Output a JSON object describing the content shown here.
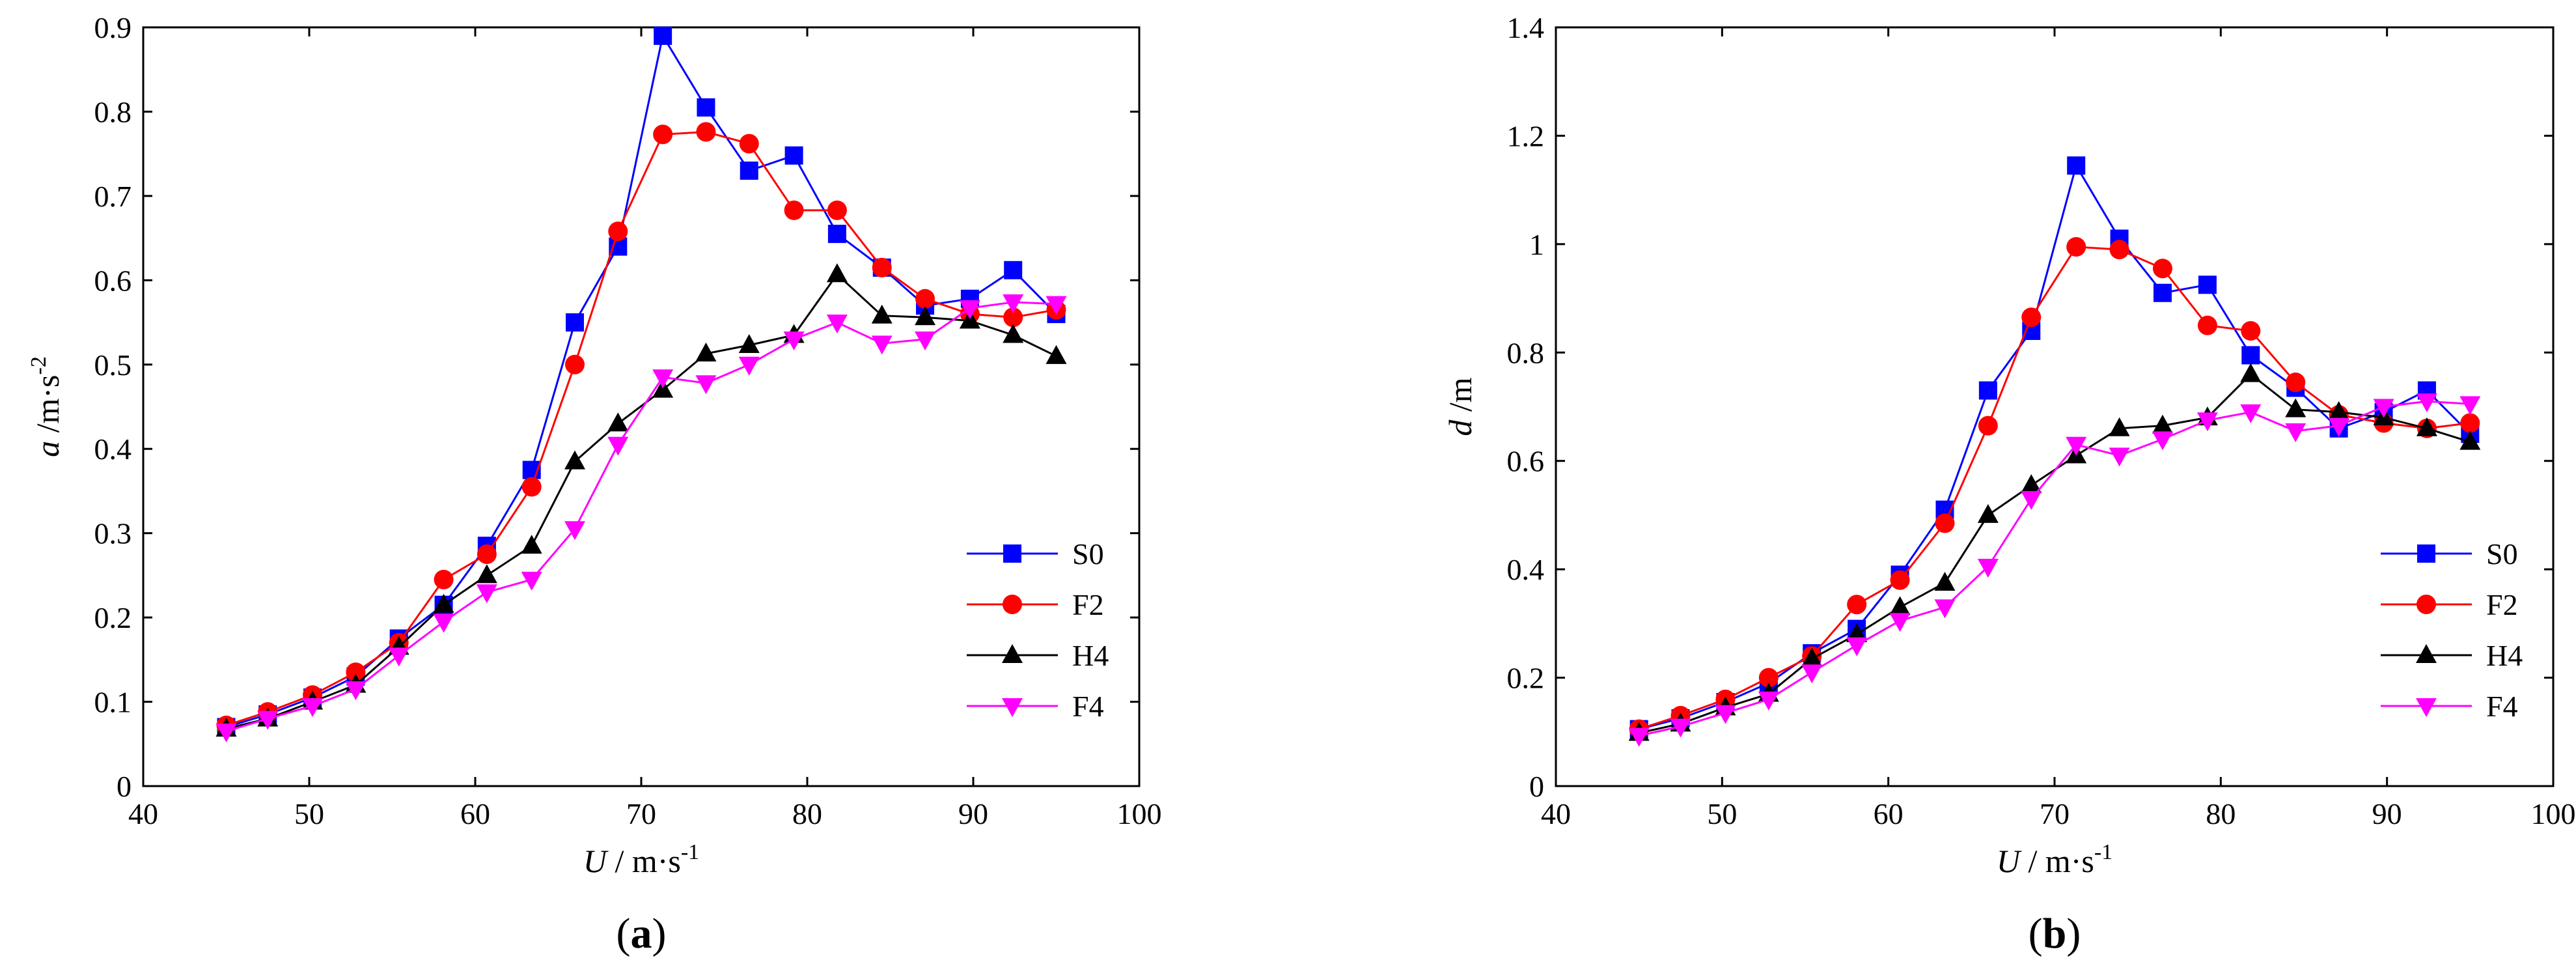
{
  "chart_data": [
    {
      "type": "line",
      "panel_label": "(a)",
      "panel_letter": "a",
      "xlabel": {
        "var": "U",
        "unit": " / m·s",
        "exp": "-1"
      },
      "ylabel": {
        "var": "a",
        "unit": " /m·s",
        "exp": "-2"
      },
      "xlim": [
        40,
        100
      ],
      "ylim": [
        0,
        0.9
      ],
      "xticks": [
        "40",
        "50",
        "60",
        "70",
        "80",
        "90",
        "100"
      ],
      "yticks": [
        "0",
        "0.1",
        "0.2",
        "0.3",
        "0.4",
        "0.5",
        "0.6",
        "0.7",
        "0.8",
        "0.9"
      ],
      "grid": false,
      "legend_position": "lower-right",
      "x": [
        45,
        47.5,
        50.2,
        52.8,
        55.4,
        58.1,
        60.7,
        63.4,
        66,
        68.6,
        71.3,
        73.9,
        76.5,
        79.2,
        81.8,
        84.5,
        87.1,
        89.8,
        92.4,
        95
      ],
      "series": [
        {
          "name": "S0",
          "color": "#0000ff",
          "marker": "square",
          "values": [
            0.07,
            0.085,
            0.105,
            0.13,
            0.175,
            0.215,
            0.285,
            0.375,
            0.55,
            0.64,
            0.89,
            0.805,
            0.73,
            0.748,
            0.655,
            0.615,
            0.57,
            0.578,
            0.612,
            0.56
          ]
        },
        {
          "name": "F2",
          "color": "#ff0000",
          "marker": "circle",
          "values": [
            0.072,
            0.088,
            0.108,
            0.135,
            0.17,
            0.245,
            0.275,
            0.355,
            0.5,
            0.658,
            0.773,
            0.776,
            0.762,
            0.683,
            0.683,
            0.615,
            0.578,
            0.56,
            0.556,
            0.565
          ]
        },
        {
          "name": "H4",
          "color": "#000000",
          "marker": "triangle-up",
          "values": [
            0.068,
            0.08,
            0.1,
            0.12,
            0.165,
            0.215,
            0.25,
            0.285,
            0.385,
            0.43,
            0.47,
            0.513,
            0.523,
            0.535,
            0.607,
            0.558,
            0.556,
            0.552,
            0.535,
            0.51
          ]
        },
        {
          "name": "F4",
          "color": "#ff00ff",
          "marker": "triangle-down",
          "values": [
            0.065,
            0.08,
            0.095,
            0.115,
            0.155,
            0.195,
            0.23,
            0.245,
            0.305,
            0.405,
            0.485,
            0.478,
            0.5,
            0.53,
            0.55,
            0.525,
            0.53,
            0.567,
            0.574,
            0.572
          ]
        }
      ]
    },
    {
      "type": "line",
      "panel_label": "(b)",
      "panel_letter": "b",
      "xlabel": {
        "var": "U",
        "unit": " / m·s",
        "exp": "-1"
      },
      "ylabel": {
        "var": "d",
        "unit": " /m",
        "exp": ""
      },
      "xlim": [
        40,
        100
      ],
      "ylim": [
        0,
        1.4
      ],
      "xticks": [
        "40",
        "50",
        "60",
        "70",
        "80",
        "90",
        "100"
      ],
      "yticks": [
        "0",
        "0.2",
        "0.4",
        "0.6",
        "0.8",
        "1",
        "1.2",
        "1.4"
      ],
      "grid": false,
      "legend_position": "lower-right",
      "x": [
        45,
        47.5,
        50.2,
        52.8,
        55.4,
        58.1,
        60.7,
        63.4,
        66,
        68.6,
        71.3,
        73.9,
        76.5,
        79.2,
        81.8,
        84.5,
        87.1,
        89.8,
        92.4,
        95
      ],
      "series": [
        {
          "name": "S0",
          "color": "#0000ff",
          "marker": "square",
          "values": [
            0.105,
            0.125,
            0.155,
            0.19,
            0.245,
            0.29,
            0.39,
            0.51,
            0.73,
            0.84,
            1.145,
            1.01,
            0.91,
            0.925,
            0.795,
            0.735,
            0.66,
            0.69,
            0.73,
            0.65
          ]
        },
        {
          "name": "F2",
          "color": "#ff0000",
          "marker": "circle",
          "values": [
            0.105,
            0.13,
            0.16,
            0.2,
            0.24,
            0.335,
            0.38,
            0.485,
            0.665,
            0.865,
            0.995,
            0.99,
            0.955,
            0.85,
            0.84,
            0.745,
            0.685,
            0.67,
            0.66,
            0.67
          ]
        },
        {
          "name": "H4",
          "color": "#000000",
          "marker": "triangle-up",
          "values": [
            0.098,
            0.115,
            0.145,
            0.17,
            0.235,
            0.28,
            0.33,
            0.375,
            0.5,
            0.555,
            0.61,
            0.66,
            0.665,
            0.68,
            0.76,
            0.695,
            0.69,
            0.68,
            0.66,
            0.635
          ]
        },
        {
          "name": "F4",
          "color": "#ff00ff",
          "marker": "triangle-down",
          "values": [
            0.093,
            0.11,
            0.135,
            0.16,
            0.21,
            0.26,
            0.305,
            0.33,
            0.405,
            0.53,
            0.63,
            0.61,
            0.64,
            0.675,
            0.69,
            0.655,
            0.665,
            0.7,
            0.71,
            0.705
          ]
        }
      ]
    }
  ]
}
